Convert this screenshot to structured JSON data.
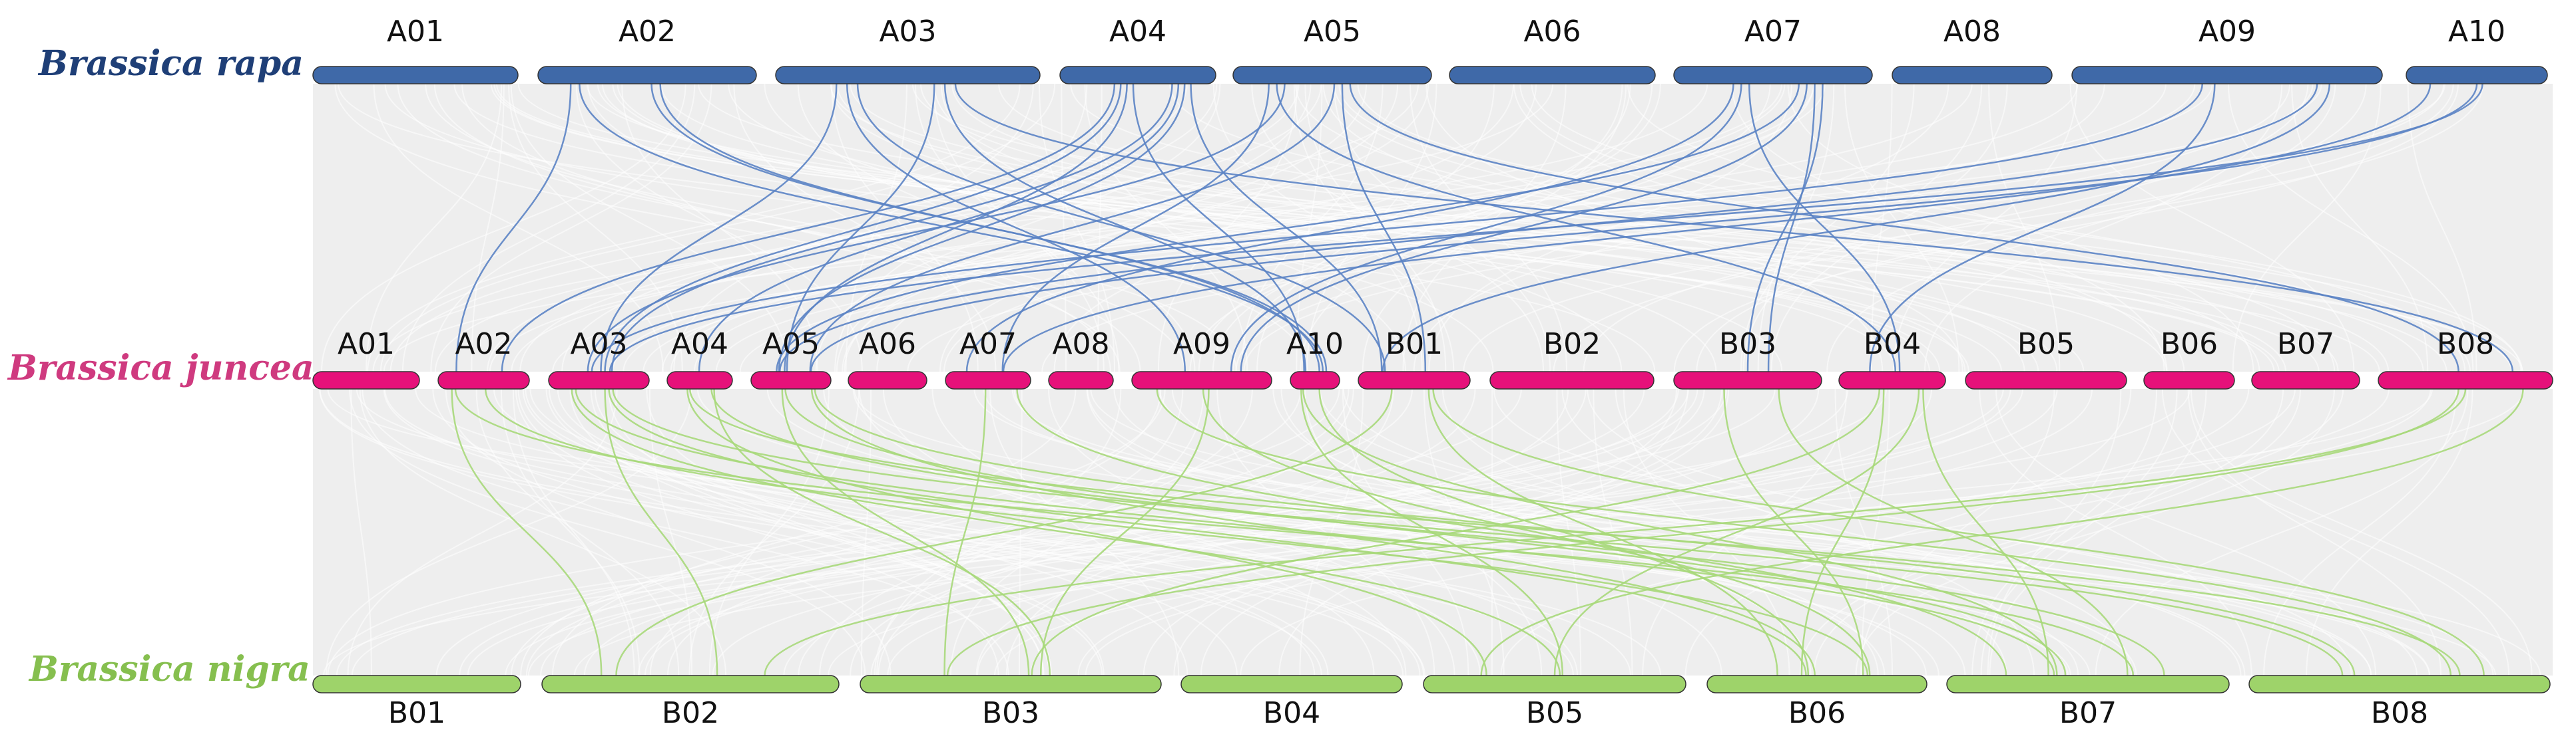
{
  "colors": {
    "rapa": "#3f69a8",
    "rapa_link": "#5b83c4",
    "juncea": "#e6117a",
    "juncea_title": "#d0357e",
    "nigra": "#9ed36a",
    "nigra_title": "#86bf4f",
    "nigra_link": "#a7d87a",
    "band": "#eeeeee",
    "background_line": "#ffffff"
  },
  "tracks": {
    "rapa": {
      "species_label": "Brassica rapa",
      "chromosomes": [
        {
          "name": "A01"
        },
        {
          "name": "A02"
        },
        {
          "name": "A03"
        },
        {
          "name": "A04"
        },
        {
          "name": "A05"
        },
        {
          "name": "A06"
        },
        {
          "name": "A07"
        },
        {
          "name": "A08"
        },
        {
          "name": "A09"
        },
        {
          "name": "A10"
        }
      ]
    },
    "juncea": {
      "species_label": "Brassica juncea",
      "chromosomes": [
        {
          "name": "A01"
        },
        {
          "name": "A02"
        },
        {
          "name": "A03"
        },
        {
          "name": "A04"
        },
        {
          "name": "A05"
        },
        {
          "name": "A06"
        },
        {
          "name": "A07"
        },
        {
          "name": "A08"
        },
        {
          "name": "A09"
        },
        {
          "name": "A10"
        },
        {
          "name": "B01"
        },
        {
          "name": "B02"
        },
        {
          "name": "B03"
        },
        {
          "name": "B04"
        },
        {
          "name": "B05"
        },
        {
          "name": "B06"
        },
        {
          "name": "B07"
        },
        {
          "name": "B08"
        }
      ]
    },
    "nigra": {
      "species_label": "Brassica nigra",
      "chromosomes": [
        {
          "name": "B01"
        },
        {
          "name": "B02"
        },
        {
          "name": "B03"
        },
        {
          "name": "B04"
        },
        {
          "name": "B05"
        },
        {
          "name": "B06"
        },
        {
          "name": "B07"
        },
        {
          "name": "B08"
        }
      ]
    }
  },
  "links": {
    "rapa_to_juncea": [
      [
        "A02",
        "A02"
      ],
      [
        "A02",
        "A10"
      ],
      [
        "A02",
        "A10"
      ],
      [
        "A02",
        "A10"
      ],
      [
        "A03",
        "A03"
      ],
      [
        "A03",
        "A05"
      ],
      [
        "A03",
        "A09"
      ],
      [
        "A03",
        "A10"
      ],
      [
        "A03",
        "B01"
      ],
      [
        "A03",
        "B08"
      ],
      [
        "A04",
        "A02"
      ],
      [
        "A04",
        "A03"
      ],
      [
        "A04",
        "A03"
      ],
      [
        "A04",
        "A04"
      ],
      [
        "A04",
        "A05"
      ],
      [
        "A04",
        "A05"
      ],
      [
        "A04",
        "A10"
      ],
      [
        "A04",
        "B01"
      ],
      [
        "A05",
        "A05"
      ],
      [
        "A05",
        "A07"
      ],
      [
        "A05",
        "B01"
      ],
      [
        "A05",
        "B04"
      ],
      [
        "A05",
        "B08"
      ],
      [
        "A05",
        "A03"
      ],
      [
        "A07",
        "A05"
      ],
      [
        "A07",
        "A07"
      ],
      [
        "A07",
        "A09"
      ],
      [
        "A07",
        "A09"
      ],
      [
        "A07",
        "B03"
      ],
      [
        "A07",
        "B04"
      ],
      [
        "A07",
        "B03"
      ],
      [
        "A09",
        "A03"
      ],
      [
        "A09",
        "A05"
      ],
      [
        "A09",
        "B04"
      ],
      [
        "A09",
        "B01"
      ],
      [
        "A10",
        "A05"
      ],
      [
        "A10",
        "A07"
      ],
      [
        "A10",
        "A03"
      ]
    ],
    "juncea_to_nigra": [
      [
        "A02",
        "B02"
      ],
      [
        "A02",
        "B06"
      ],
      [
        "A02",
        "B07"
      ],
      [
        "A03",
        "B02"
      ],
      [
        "A03",
        "B05"
      ],
      [
        "A03",
        "B06"
      ],
      [
        "A03",
        "B07"
      ],
      [
        "A03",
        "B08"
      ],
      [
        "A04",
        "B05"
      ],
      [
        "A04",
        "B07"
      ],
      [
        "A04",
        "B08"
      ],
      [
        "A04",
        "B03"
      ],
      [
        "A05",
        "B03"
      ],
      [
        "A05",
        "B06"
      ],
      [
        "A05",
        "B07"
      ],
      [
        "A05",
        "B08"
      ],
      [
        "A07",
        "B03"
      ],
      [
        "A07",
        "B07"
      ],
      [
        "A09",
        "B06"
      ],
      [
        "A09",
        "B08"
      ],
      [
        "A09",
        "B03"
      ],
      [
        "A10",
        "B05"
      ],
      [
        "A10",
        "B06"
      ],
      [
        "A10",
        "B07"
      ],
      [
        "B01",
        "B06"
      ],
      [
        "B01",
        "B02"
      ],
      [
        "B01",
        "B08"
      ],
      [
        "B03",
        "B06"
      ],
      [
        "B03",
        "B07"
      ],
      [
        "B04",
        "B03"
      ],
      [
        "B04",
        "B05"
      ],
      [
        "B04",
        "B06"
      ],
      [
        "B04",
        "B07"
      ],
      [
        "B08",
        "B03"
      ],
      [
        "B08",
        "B05"
      ],
      [
        "B08",
        "B02"
      ]
    ]
  }
}
